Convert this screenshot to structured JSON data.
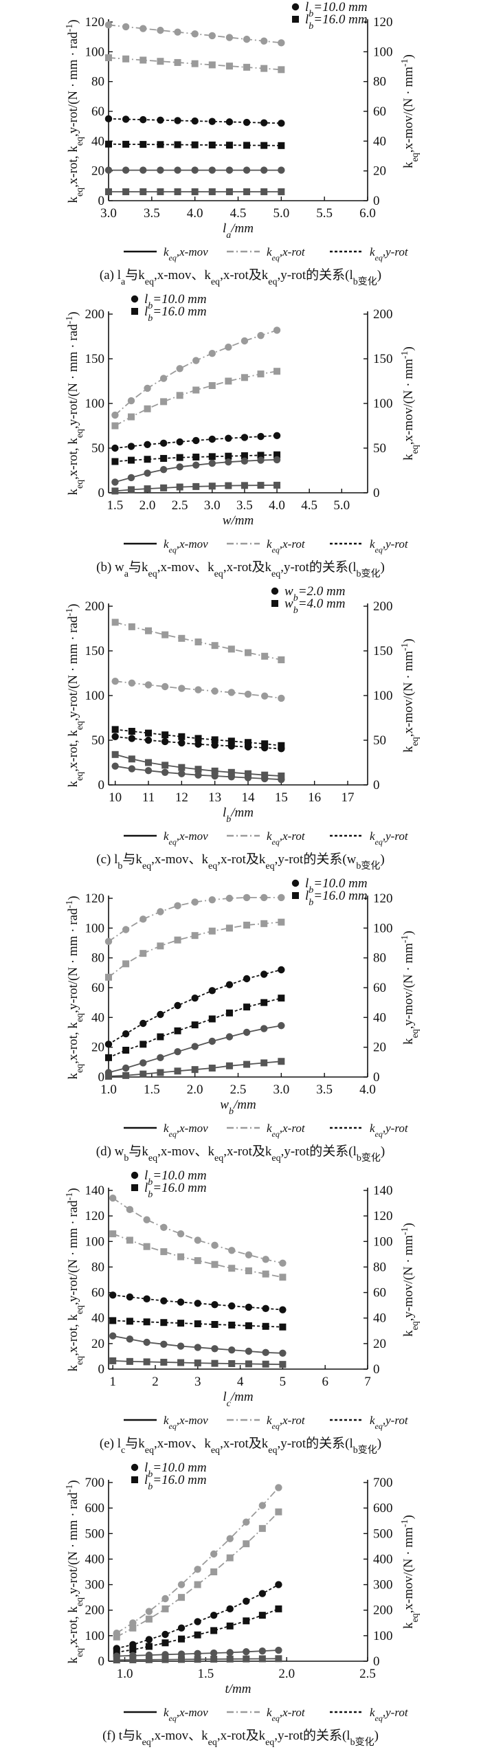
{
  "chart_data": [
    {
      "type": "line",
      "xlabel": "l_a/mm",
      "ylabel_left": "k_eq,x-rot, k_eq,y-rot/(N · mm · rad^-1)",
      "ylabel_right": "k_eq,x-mov/(N · mm^-1)",
      "xlim": [
        3.0,
        6.0
      ],
      "xticks": [
        "3.0",
        "3.5",
        "4.0",
        "4.5",
        "5.0",
        "5.5",
        "6.0"
      ],
      "ylim": [
        0,
        120
      ],
      "yticks_left": [
        "0",
        "20",
        "40",
        "60",
        "80",
        "100",
        "120"
      ],
      "yticks_right": [
        "0",
        "20",
        "40",
        "60",
        "80",
        "100",
        "120"
      ],
      "legend": [
        {
          "marker": "circle",
          "label": "l_b=10.0 mm"
        },
        {
          "marker": "square",
          "label": "l_b=16.0 mm"
        }
      ],
      "caption": "(a) l_a与k_eq,x-mov、k_eq,x-rot及k_eq,y-rot的关系(l_b变化)",
      "x": [
        3.0,
        3.2,
        3.4,
        3.6,
        3.8,
        4.0,
        4.2,
        4.4,
        4.6,
        4.8,
        5.0
      ],
      "series": [
        {
          "marker": "circle",
          "style": "dashdot",
          "color": "#9a9a9a",
          "values": [
            118,
            116.8,
            115.6,
            114.4,
            113.2,
            112,
            110.8,
            109.6,
            108.4,
            107.2,
            106
          ]
        },
        {
          "marker": "square",
          "style": "dashdot",
          "color": "#9a9a9a",
          "values": [
            96,
            95.2,
            94.4,
            93.6,
            92.8,
            92,
            91.2,
            90.4,
            89.6,
            88.8,
            88
          ]
        },
        {
          "marker": "circle",
          "style": "dotted",
          "color": "#111111",
          "values": [
            55,
            54.7,
            54.4,
            54.1,
            53.8,
            53.5,
            53.2,
            52.9,
            52.6,
            52.3,
            52
          ]
        },
        {
          "marker": "square",
          "style": "dotted",
          "color": "#111111",
          "values": [
            38,
            37.9,
            37.8,
            37.7,
            37.6,
            37.5,
            37.4,
            37.3,
            37.2,
            37.1,
            37
          ]
        },
        {
          "marker": "circle",
          "style": "solid",
          "color": "#555555",
          "values": [
            20.5,
            20.5,
            20.5,
            20.5,
            20.5,
            20.5,
            20.5,
            20.5,
            20.5,
            20.5,
            20.5
          ]
        },
        {
          "marker": "square",
          "style": "solid",
          "color": "#555555",
          "values": [
            6,
            6,
            6,
            6,
            6,
            6,
            6,
            6,
            6,
            6,
            6
          ]
        }
      ]
    },
    {
      "type": "line",
      "xlabel": "w/mm",
      "ylabel_left": "k_eq,x-rot, k_eq,y-rot/(N · mm · rad^-1)",
      "ylabel_right": "k_eq,x-mov/(N · mm^-1)",
      "xlim": [
        1.4,
        5.4
      ],
      "xticks": [
        "1.5",
        "2.0",
        "2.5",
        "3.0",
        "3.5",
        "4.0",
        "4.5",
        "5.0"
      ],
      "ylim": [
        0,
        200
      ],
      "yticks_left": [
        "0",
        "50",
        "100",
        "150",
        "200"
      ],
      "yticks_right": [
        "0",
        "50",
        "100",
        "150",
        "200"
      ],
      "legend": [
        {
          "marker": "circle",
          "label": "l_b=10.0 mm"
        },
        {
          "marker": "square",
          "label": "l_b=16.0 mm"
        }
      ],
      "caption": "(b) w_a与k_eq,x-mov、k_eq,x-rot及k_eq,y-rot的关系(l_b变化)",
      "x": [
        1.5,
        1.75,
        2.0,
        2.25,
        2.5,
        2.75,
        3.0,
        3.25,
        3.5,
        3.75,
        4.0
      ],
      "series": [
        {
          "marker": "circle",
          "style": "dashdot",
          "color": "#9a9a9a",
          "values": [
            87,
            103,
            117,
            128,
            139,
            148,
            156,
            163,
            170,
            176,
            182
          ]
        },
        {
          "marker": "square",
          "style": "dashdot",
          "color": "#9a9a9a",
          "values": [
            75,
            85,
            94,
            102,
            109,
            115,
            120,
            125,
            129,
            133,
            136
          ]
        },
        {
          "marker": "circle",
          "style": "dotted",
          "color": "#111111",
          "values": [
            50,
            52,
            54,
            55.5,
            57,
            58.5,
            60,
            61,
            62,
            63,
            64
          ]
        },
        {
          "marker": "square",
          "style": "dotted",
          "color": "#111111",
          "values": [
            35,
            36.5,
            37.5,
            38.5,
            39.5,
            40,
            40.5,
            41,
            41.5,
            42,
            42.5
          ]
        },
        {
          "marker": "circle",
          "style": "solid",
          "color": "#555555",
          "values": [
            12,
            17,
            22,
            26,
            29,
            31,
            33,
            34.5,
            35.5,
            36.5,
            37
          ]
        },
        {
          "marker": "square",
          "style": "solid",
          "color": "#555555",
          "values": [
            2,
            3.5,
            4.5,
            5.5,
            6.5,
            7,
            7.5,
            8,
            8.2,
            8.4,
            8.5
          ]
        }
      ]
    },
    {
      "type": "line",
      "xlabel": "l_b/mm",
      "ylabel_left": "k_eq,x-rot, k_eq,y-rot/(N · mm · rad^-1)",
      "ylabel_right": "k_eq,x-mov/(N · mm^-1)",
      "xlim": [
        9.8,
        17.6
      ],
      "xticks": [
        "10",
        "11",
        "12",
        "13",
        "14",
        "15",
        "16",
        "17"
      ],
      "ylim": [
        0,
        200
      ],
      "yticks_left": [
        "0",
        "50",
        "100",
        "150",
        "200"
      ],
      "yticks_right": [
        "0",
        "50",
        "100",
        "150",
        "200"
      ],
      "legend": [
        {
          "marker": "circle",
          "label": "w_b=2.0 mm"
        },
        {
          "marker": "square",
          "label": "w_b=4.0 mm"
        }
      ],
      "caption": "(c) l_b与k_eq,x-mov、k_eq,x-rot及k_eq,y-rot的关系(w_b变化)",
      "x": [
        10.0,
        10.5,
        11.0,
        11.5,
        12.0,
        12.5,
        13.0,
        13.5,
        14.0,
        14.5,
        15.0
      ],
      "series": [
        {
          "marker": "square",
          "style": "dashdot",
          "color": "#9a9a9a",
          "values": [
            182,
            177,
            172.5,
            168,
            164,
            160,
            156,
            152,
            148,
            144,
            140
          ]
        },
        {
          "marker": "circle",
          "style": "dashdot",
          "color": "#9a9a9a",
          "values": [
            116,
            114,
            112,
            110,
            108,
            106.5,
            105,
            103.5,
            101.5,
            99.5,
            97
          ]
        },
        {
          "marker": "square",
          "style": "dotted",
          "color": "#111111",
          "values": [
            62,
            60,
            58,
            56,
            54,
            52,
            50.5,
            49,
            47.5,
            46,
            44
          ]
        },
        {
          "marker": "circle",
          "style": "dotted",
          "color": "#111111",
          "values": [
            54,
            52,
            50,
            48.5,
            47,
            45.5,
            44.5,
            43.5,
            42.5,
            41.5,
            40.5
          ]
        },
        {
          "marker": "square",
          "style": "solid",
          "color": "#555555",
          "values": [
            34,
            29,
            25,
            22,
            19.5,
            17.5,
            15.5,
            14,
            12.5,
            11,
            10
          ]
        },
        {
          "marker": "circle",
          "style": "solid",
          "color": "#555555",
          "values": [
            21,
            18,
            16,
            14,
            12.5,
            11,
            10,
            9,
            8,
            7,
            6
          ]
        }
      ]
    },
    {
      "type": "line",
      "xlabel": "w_b/mm",
      "ylabel_left": "k_eq,x-rot, k_eq,y-rot/(N · mm · rad^-1)",
      "ylabel_right": "k_eq,y-mov/(N · mm^-1)",
      "xlim": [
        1.0,
        4.0
      ],
      "xticks": [
        "1.0",
        "1.5",
        "2.0",
        "2.5",
        "3.0",
        "3.5",
        "4.0"
      ],
      "ylim": [
        0,
        120
      ],
      "yticks_left": [
        "0",
        "20",
        "40",
        "60",
        "80",
        "100",
        "120"
      ],
      "yticks_right": [
        "0",
        "20",
        "40",
        "60",
        "80",
        "100",
        "120"
      ],
      "legend": [
        {
          "marker": "circle",
          "label": "l_b=10.0 mm"
        },
        {
          "marker": "square",
          "label": "l_b=16.0 mm"
        }
      ],
      "caption": "(d) w_b与k_eq,x-mov、k_eq,x-rot及k_eq,y-rot的关系(l_b变化)",
      "x": [
        1.0,
        1.2,
        1.4,
        1.6,
        1.8,
        2.0,
        2.2,
        2.4,
        2.6,
        2.8,
        3.0
      ],
      "series": [
        {
          "marker": "circle",
          "style": "dashdot",
          "color": "#9a9a9a",
          "values": [
            91,
            99,
            106,
            111,
            115,
            117.5,
            119,
            120,
            120.5,
            120.5,
            120.5
          ]
        },
        {
          "marker": "square",
          "style": "dashdot",
          "color": "#9a9a9a",
          "values": [
            67,
            76,
            83,
            88,
            92,
            95,
            98,
            100,
            102,
            103,
            104
          ]
        },
        {
          "marker": "circle",
          "style": "dotted",
          "color": "#111111",
          "values": [
            22,
            29,
            36,
            42,
            48,
            53,
            58,
            62,
            66,
            69,
            72
          ]
        },
        {
          "marker": "square",
          "style": "dotted",
          "color": "#111111",
          "values": [
            13,
            18,
            22,
            27,
            31,
            35,
            39,
            43,
            47,
            50,
            53
          ]
        },
        {
          "marker": "circle",
          "style": "solid",
          "color": "#555555",
          "values": [
            3,
            6,
            9.5,
            13,
            17,
            20.5,
            24,
            27,
            30,
            32.5,
            34.5
          ]
        },
        {
          "marker": "square",
          "style": "solid",
          "color": "#555555",
          "values": [
            0.5,
            1,
            2,
            3,
            4,
            5,
            6,
            7.5,
            8.5,
            9.5,
            10.5
          ]
        }
      ]
    },
    {
      "type": "line",
      "xlabel": "l_c/mm",
      "ylabel_left": "k_eq,x-rot, k_eq,y-rot/(N · mm · rad^-1)",
      "ylabel_right": "k_eq,y-mov/(N · mm^-1)",
      "xlim": [
        0.9,
        7.0
      ],
      "xticks": [
        "1",
        "2",
        "3",
        "4",
        "5",
        "6",
        "7"
      ],
      "ylim": [
        0,
        140
      ],
      "yticks_left": [
        "0",
        "20",
        "40",
        "60",
        "80",
        "100",
        "120",
        "140"
      ],
      "yticks_right": [
        "0",
        "20",
        "40",
        "60",
        "80",
        "100",
        "120",
        "140"
      ],
      "legend": [
        {
          "marker": "circle",
          "label": "l_b=10.0 mm"
        },
        {
          "marker": "square",
          "label": "l_b=16.0 mm"
        }
      ],
      "caption": "(e) l_c与k_eq,x-mov、k_eq,x-rot及k_eq,y-rot的关系(l_b变化)",
      "x": [
        1.0,
        1.4,
        1.8,
        2.2,
        2.6,
        3.0,
        3.4,
        3.8,
        4.2,
        4.6,
        5.0
      ],
      "series": [
        {
          "marker": "circle",
          "style": "dashdot",
          "color": "#9a9a9a",
          "values": [
            134,
            125,
            117,
            111,
            106,
            101,
            97,
            93,
            89.5,
            86,
            83
          ]
        },
        {
          "marker": "square",
          "style": "dashdot",
          "color": "#9a9a9a",
          "values": [
            106,
            101,
            96,
            92,
            88,
            85,
            82,
            79,
            77,
            74.5,
            72
          ]
        },
        {
          "marker": "circle",
          "style": "dotted",
          "color": "#111111",
          "values": [
            58,
            56.5,
            55,
            53.5,
            52.5,
            51.5,
            50.5,
            49.5,
            48.5,
            47.5,
            46.5
          ]
        },
        {
          "marker": "square",
          "style": "dotted",
          "color": "#111111",
          "values": [
            38,
            37.5,
            37,
            36.5,
            36,
            35.5,
            35,
            34.5,
            34,
            33.5,
            33
          ]
        },
        {
          "marker": "circle",
          "style": "solid",
          "color": "#555555",
          "values": [
            26,
            23.5,
            21,
            19.5,
            18,
            17,
            16,
            15,
            14,
            13,
            12.5
          ]
        },
        {
          "marker": "square",
          "style": "solid",
          "color": "#555555",
          "values": [
            6.5,
            6,
            5.7,
            5.4,
            5.1,
            4.8,
            4.5,
            4.3,
            4.1,
            3.9,
            3.7
          ]
        }
      ]
    },
    {
      "type": "line",
      "xlabel": "t/mm",
      "ylabel_left": "k_eq,x-rot, k_eq,y-rot/(N · mm · rad^-1)",
      "ylabel_right": "k_eq,x-mov/(N · mm^-1)",
      "xlim": [
        0.9,
        2.5
      ],
      "xticks": [
        "1.0",
        "1.5",
        "2.0",
        "2.5"
      ],
      "ylim": [
        0,
        700
      ],
      "yticks_left": [
        "0",
        "100",
        "200",
        "300",
        "400",
        "500",
        "600",
        "700"
      ],
      "yticks_right": [
        "0",
        "100",
        "200",
        "300",
        "400",
        "500",
        "600",
        "700"
      ],
      "legend": [
        {
          "marker": "circle",
          "label": "l_b=10.0 mm"
        },
        {
          "marker": "square",
          "label": "l_b=16.0 mm"
        }
      ],
      "caption": "(f) t与k_eq,x-mov、k_eq,x-rot及k_eq,y-rot的关系(l_b变化)",
      "x": [
        0.95,
        1.05,
        1.15,
        1.25,
        1.35,
        1.45,
        1.55,
        1.65,
        1.75,
        1.85,
        1.95
      ],
      "series": [
        {
          "marker": "circle",
          "style": "dashdot",
          "color": "#9a9a9a",
          "values": [
            110,
            150,
            195,
            245,
            300,
            360,
            420,
            480,
            545,
            610,
            680
          ]
        },
        {
          "marker": "square",
          "style": "dashdot",
          "color": "#9a9a9a",
          "values": [
            95,
            130,
            165,
            205,
            250,
            300,
            350,
            405,
            460,
            520,
            585
          ]
        },
        {
          "marker": "circle",
          "style": "dotted",
          "color": "#111111",
          "values": [
            50,
            65,
            85,
            105,
            130,
            155,
            180,
            205,
            235,
            265,
            300
          ]
        },
        {
          "marker": "square",
          "style": "dotted",
          "color": "#111111",
          "values": [
            35,
            45,
            58,
            72,
            87,
            103,
            120,
            138,
            158,
            180,
            205
          ]
        },
        {
          "marker": "circle",
          "style": "solid",
          "color": "#555555",
          "values": [
            20,
            22,
            24,
            26,
            28,
            30,
            32,
            34,
            37,
            40,
            43
          ]
        },
        {
          "marker": "square",
          "style": "solid",
          "color": "#555555",
          "values": [
            5,
            5.5,
            6,
            6.5,
            7,
            7.5,
            8,
            8.5,
            9,
            9.5,
            10
          ]
        }
      ]
    }
  ]
}
